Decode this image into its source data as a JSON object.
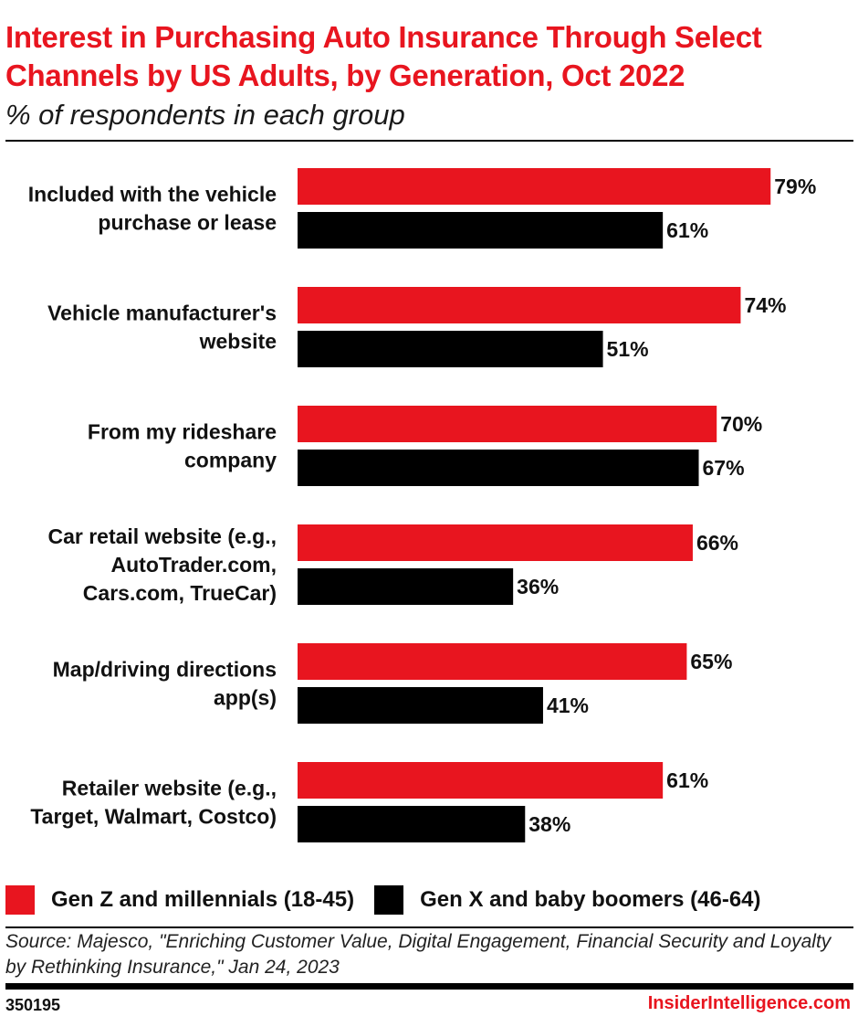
{
  "header": {
    "title": "Interest in Purchasing Auto Insurance Through Select Channels by US Adults, by Generation, Oct 2022",
    "subtitle": "% of respondents in each group"
  },
  "chart_data": {
    "type": "bar",
    "orientation": "horizontal",
    "title": "Interest in Purchasing Auto Insurance Through Select Channels by US Adults, by Generation, Oct 2022",
    "subtitle": "% of respondents in each group",
    "categories": [
      [
        "Included with the vehicle",
        "purchase or lease"
      ],
      [
        "Vehicle manufacturer's",
        "website"
      ],
      [
        "From my rideshare",
        "company"
      ],
      [
        "Car retail website (e.g.,",
        "AutoTrader.com,",
        "Cars.com, TrueCar)"
      ],
      [
        "Map/driving directions",
        "app(s)"
      ],
      [
        "Retailer website (e.g.,",
        "Target, Walmart, Costco)"
      ]
    ],
    "series": [
      {
        "name": "Gen Z and millennials (18-45)",
        "color": "#e8151f",
        "values": [
          79,
          74,
          70,
          66,
          65,
          61
        ]
      },
      {
        "name": "Gen X and baby boomers (46-64)",
        "color": "#000000",
        "values": [
          61,
          51,
          67,
          36,
          41,
          38
        ]
      }
    ],
    "value_suffix": "%",
    "xlim": [
      0,
      100
    ],
    "grid": false,
    "legend_position": "bottom-left"
  },
  "footer": {
    "source": "Source: Majesco, \"Enriching Customer Value, Digital Engagement, Financial Security and Loyalty by Rethinking Insurance,\" Jan 24, 2023",
    "chart_id": "350195",
    "brand": "InsiderIntelligence.com"
  }
}
